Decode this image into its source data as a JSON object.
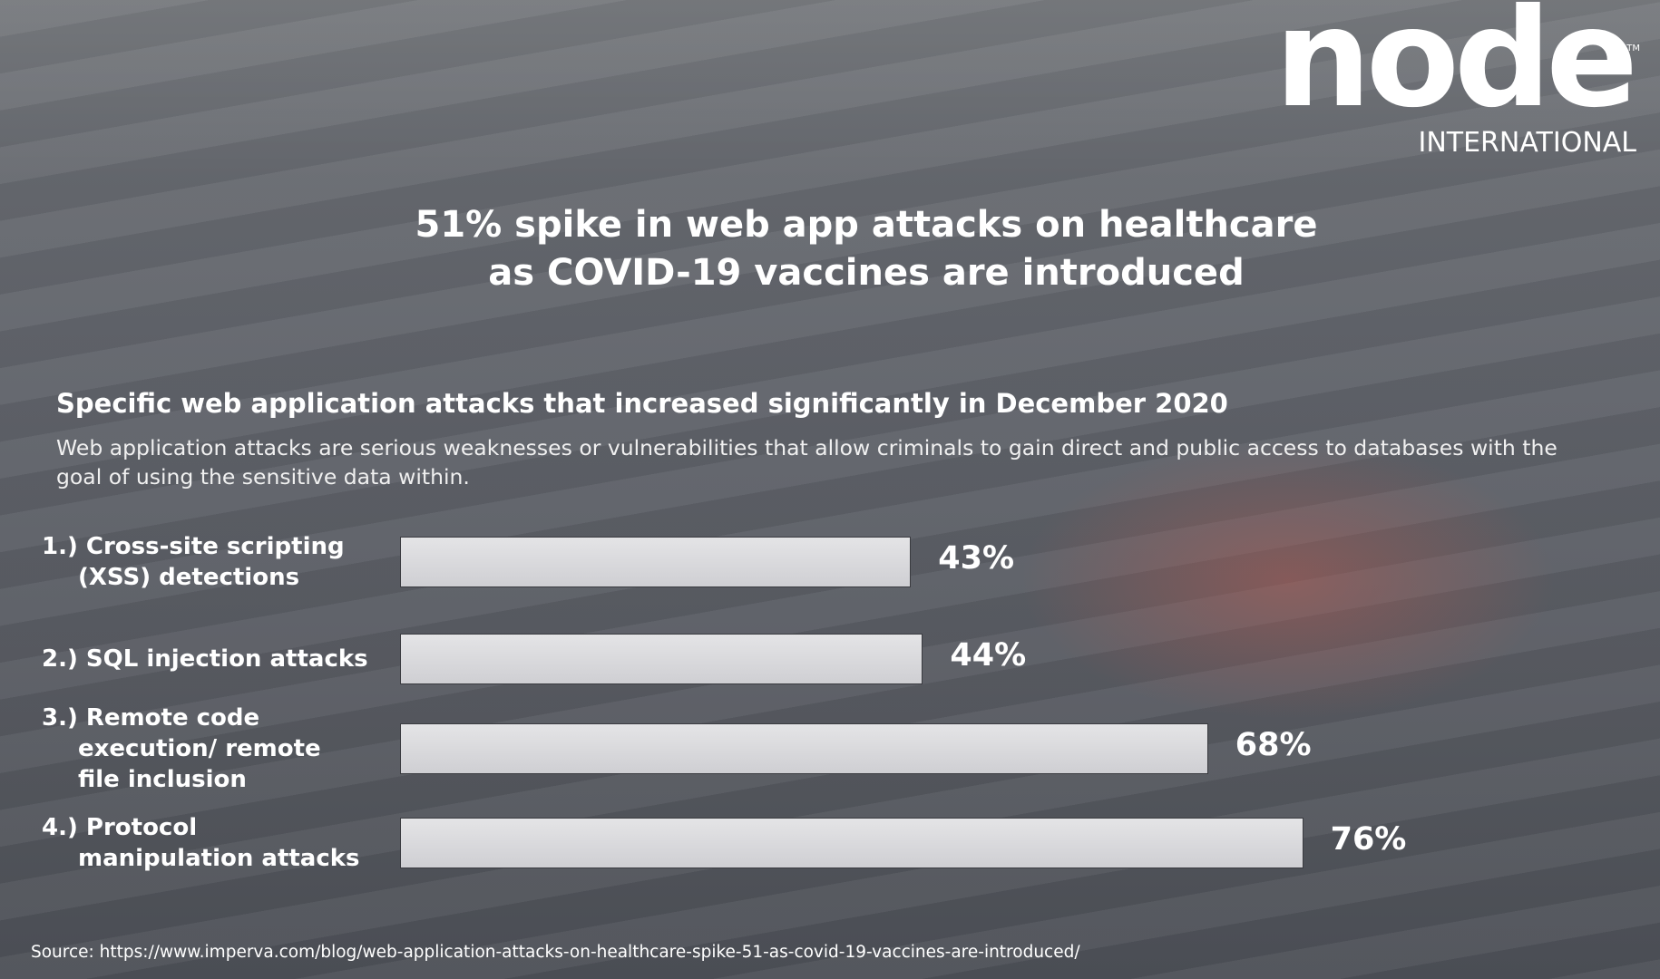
{
  "logo": {
    "name": "node",
    "tm": "TM",
    "tagline": "INTERNATIONAL"
  },
  "chart_data": {
    "type": "bar",
    "orientation": "horizontal",
    "title": "51% spike in web app attacks on healthcare as COVID-19 vaccines are introduced",
    "subtitle": "Specific web application attacks that increased significantly in December 2020",
    "description": "Web application attacks are serious weaknesses or vulnerabilities that allow criminals to gain direct and public access to databases with the goal of using the sensitive data within.",
    "categories": [
      "1.) Cross-site scripting (XSS) detections",
      "2.) SQL injection attacks",
      "3.) Remote code execution/ remote file inclusion",
      "4.) Protocol manipulation attacks"
    ],
    "values": [
      43,
      44,
      68,
      76
    ],
    "value_labels": [
      "43%",
      "44%",
      "68%",
      "76%"
    ],
    "color": "#e4e4e6",
    "source": "Source: https://www.imperva.com/blog/web-application-attacks-on-healthcare-spike-51-as-covid-19-vaccines-are-introduced/"
  }
}
